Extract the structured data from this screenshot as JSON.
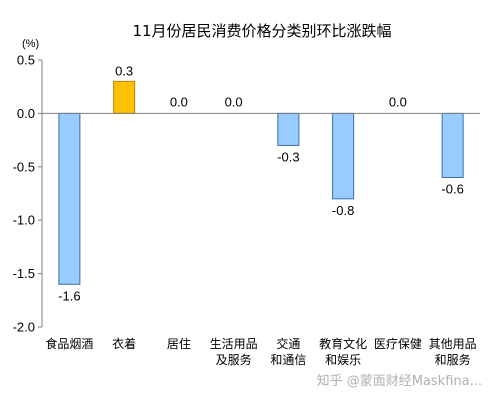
{
  "chart_data": {
    "type": "bar",
    "title": "11月份居民消费价格分类别环比涨跌幅",
    "unit": "(%)",
    "categories": [
      [
        "食品烟酒"
      ],
      [
        "衣着"
      ],
      [
        "居住"
      ],
      [
        "生活用品",
        "及服务"
      ],
      [
        "交通",
        "和通信"
      ],
      [
        "教育文化",
        "和娱乐"
      ],
      [
        "医疗保健"
      ],
      [
        "其他用品",
        "和服务"
      ]
    ],
    "values": [
      -1.6,
      0.3,
      0.0,
      0.0,
      -0.3,
      -0.8,
      0.0,
      -0.6
    ],
    "value_labels": [
      "-1.6",
      "0.3",
      "0.0",
      "0.0",
      "-0.3",
      "-0.8",
      "0.0",
      "-0.6"
    ],
    "ylim": [
      -2.0,
      0.5
    ],
    "yticks": [
      0.5,
      0.0,
      -0.5,
      -1.0,
      -1.5,
      -2.0
    ],
    "ytick_labels": [
      "0.5",
      "0.0",
      "-0.5",
      "-1.0",
      "-1.5",
      "-2.0"
    ],
    "colors": {
      "negative_fill": "#99ccff",
      "negative_stroke": "#3a6ea5",
      "positive_fill": "#ffc000",
      "positive_stroke": "#c08000",
      "axis": "#808080"
    },
    "grid": false,
    "legend": "none"
  },
  "watermark": "知乎 @蒙面财经Maskfina..."
}
